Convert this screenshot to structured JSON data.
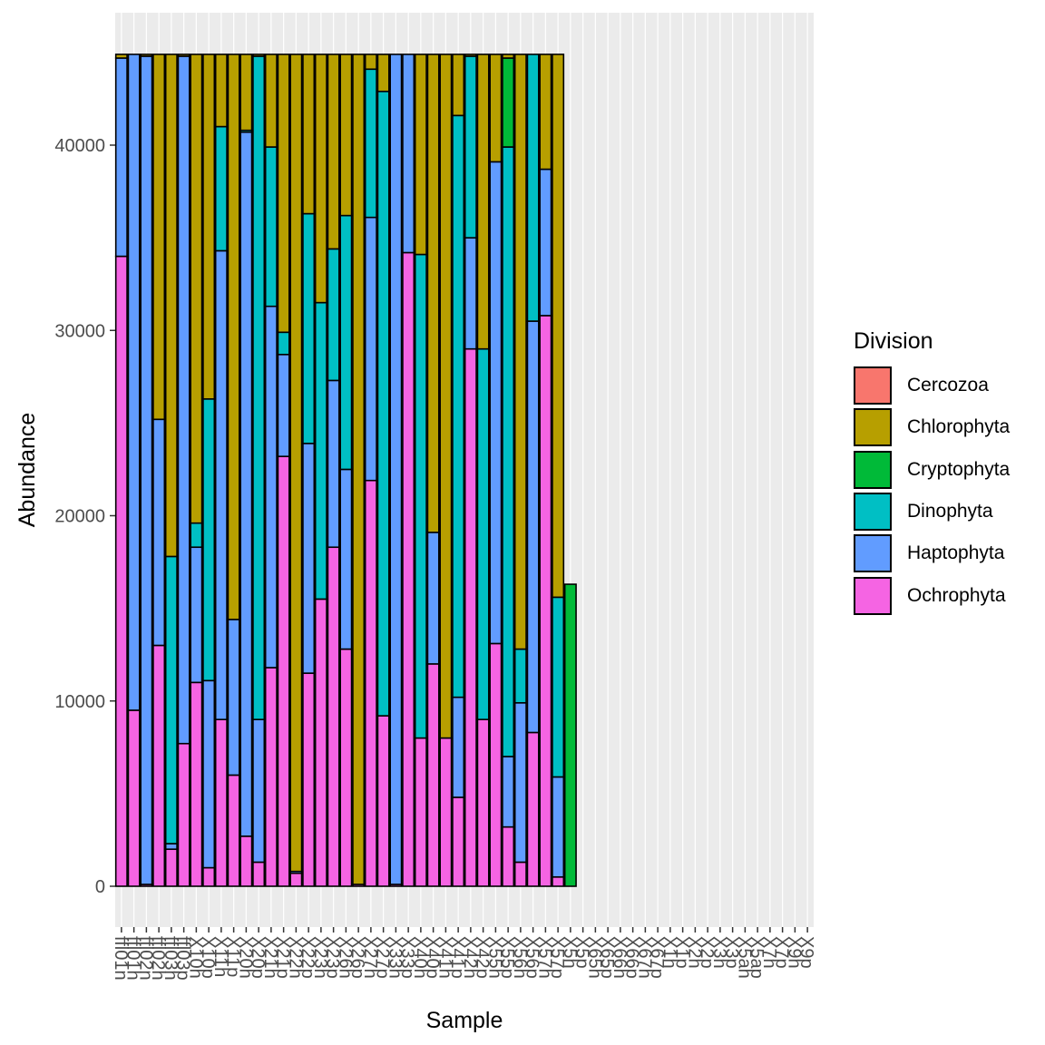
{
  "chart_data": {
    "type": "bar",
    "stacked": true,
    "xlabel": "Sample",
    "ylabel": "Abundance",
    "ylim": [
      0,
      47000
    ],
    "yticks": [
      "0",
      "10000",
      "20000",
      "30000",
      "40000"
    ],
    "grid": true,
    "legend_position": "right",
    "legend_title": "Division",
    "legend": [
      {
        "name": "Cercozoa",
        "color": "#F8766D"
      },
      {
        "name": "Chlorophyta",
        "color": "#B79F00"
      },
      {
        "name": "Cryptophyta",
        "color": "#00BA38"
      },
      {
        "name": "Dinophyta",
        "color": "#00BFC4"
      },
      {
        "name": "Haptophyta",
        "color": "#619CFF"
      },
      {
        "name": "Ochrophyta",
        "color": "#F564E3"
      }
    ],
    "categories": [
      "ffl01n",
      "ffl01h",
      "ffl02n",
      "ffl02h",
      "ffl03n",
      "ffl03p",
      "X10n",
      "X10p",
      "X11n",
      "X11p",
      "X20n",
      "X20p",
      "X21n",
      "X21p",
      "X22n",
      "X22p",
      "X23n",
      "X23p",
      "X26n",
      "X26p",
      "X27n",
      "X27p",
      "X33n",
      "X33p",
      "X40n",
      "X40p",
      "X41n",
      "X41p",
      "X42n",
      "X42p",
      "X55n",
      "X55p",
      "X56n",
      "X56p",
      "X57n",
      "X57p",
      "X5n",
      "X5p",
      "X65n",
      "X65p",
      "X66n",
      "X66p",
      "X67n",
      "X67p",
      "X1n",
      "X1p",
      "X2n",
      "X2p",
      "X3n",
      "X3p",
      "X5an",
      "X5ap",
      "X7n",
      "X7p",
      "X9n",
      "X9p"
    ],
    "stacks": [
      {
        "Ochrophyta": 34000,
        "Haptophyta": 10700,
        "Dinophyta": 0,
        "Cryptophyta": 0,
        "Chlorophyta": 200
      },
      {
        "Ochrophyta": 9500,
        "Haptophyta": 35400,
        "Dinophyta": 0,
        "Cryptophyta": 0,
        "Chlorophyta": 0
      },
      {
        "Ochrophyta": 100,
        "Haptophyta": 44700,
        "Dinophyta": 0,
        "Cryptophyta": 0,
        "Chlorophyta": 100
      },
      {
        "Ochrophyta": 13000,
        "Haptophyta": 12200,
        "Dinophyta": 0,
        "Cryptophyta": 0,
        "Chlorophyta": 19700
      },
      {
        "Ochrophyta": 2000,
        "Haptophyta": 300,
        "Dinophyta": 15500,
        "Cryptophyta": 0,
        "Chlorophyta": 27100
      },
      {
        "Ochrophyta": 7700,
        "Haptophyta": 37100,
        "Dinophyta": 0,
        "Cryptophyta": 0,
        "Chlorophyta": 100
      },
      {
        "Ochrophyta": 11000,
        "Haptophyta": 7300,
        "Dinophyta": 1300,
        "Cryptophyta": 0,
        "Chlorophyta": 25300
      },
      {
        "Ochrophyta": 1000,
        "Haptophyta": 10100,
        "Dinophyta": 15200,
        "Cryptophyta": 0,
        "Chlorophyta": 18600
      },
      {
        "Ochrophyta": 9000,
        "Haptophyta": 25300,
        "Dinophyta": 6700,
        "Cryptophyta": 0,
        "Chlorophyta": 3900
      },
      {
        "Ochrophyta": 6000,
        "Haptophyta": 8400,
        "Dinophyta": 0,
        "Cryptophyta": 0,
        "Chlorophyta": 30500
      },
      {
        "Ochrophyta": 2700,
        "Haptophyta": 38000,
        "Dinophyta": 100,
        "Cryptophyta": 0,
        "Chlorophyta": 4100
      },
      {
        "Ochrophyta": 1300,
        "Haptophyta": 7700,
        "Dinophyta": 35800,
        "Cryptophyta": 0,
        "Chlorophyta": 100
      },
      {
        "Ochrophyta": 11800,
        "Haptophyta": 19500,
        "Dinophyta": 8600,
        "Cryptophyta": 0,
        "Chlorophyta": 5000
      },
      {
        "Ochrophyta": 23200,
        "Haptophyta": 5500,
        "Dinophyta": 1200,
        "Cryptophyta": 0,
        "Chlorophyta": 15000
      },
      {
        "Ochrophyta": 700,
        "Haptophyta": 100,
        "Dinophyta": 0,
        "Cryptophyta": 0,
        "Chlorophyta": 44100
      },
      {
        "Ochrophyta": 11500,
        "Haptophyta": 12400,
        "Dinophyta": 12400,
        "Cryptophyta": 0,
        "Chlorophyta": 8600
      },
      {
        "Ochrophyta": 15500,
        "Haptophyta": 0,
        "Dinophyta": 16000,
        "Cryptophyta": 0,
        "Chlorophyta": 13400
      },
      {
        "Ochrophyta": 18300,
        "Haptophyta": 9000,
        "Dinophyta": 7100,
        "Cryptophyta": 0,
        "Chlorophyta": 10500
      },
      {
        "Ochrophyta": 12800,
        "Haptophyta": 9700,
        "Dinophyta": 13700,
        "Cryptophyta": 0,
        "Chlorophyta": 8700
      },
      {
        "Ochrophyta": 100,
        "Haptophyta": 0,
        "Dinophyta": 0,
        "Cryptophyta": 0,
        "Chlorophyta": 44800
      },
      {
        "Ochrophyta": 21900,
        "Haptophyta": 14200,
        "Dinophyta": 8000,
        "Cryptophyta": 0,
        "Chlorophyta": 800
      },
      {
        "Ochrophyta": 9200,
        "Haptophyta": 0,
        "Dinophyta": 33700,
        "Cryptophyta": 0,
        "Chlorophyta": 2000
      },
      {
        "Ochrophyta": 100,
        "Haptophyta": 44800,
        "Dinophyta": 0,
        "Cryptophyta": 0,
        "Chlorophyta": 0
      },
      {
        "Ochrophyta": 34200,
        "Haptophyta": 10700,
        "Dinophyta": 0,
        "Cryptophyta": 0,
        "Chlorophyta": 0
      },
      {
        "Ochrophyta": 8000,
        "Haptophyta": 0,
        "Dinophyta": 26100,
        "Cryptophyta": 0,
        "Chlorophyta": 10800
      },
      {
        "Ochrophyta": 12000,
        "Haptophyta": 7100,
        "Dinophyta": 0,
        "Cryptophyta": 0,
        "Chlorophyta": 25800
      },
      {
        "Ochrophyta": 8000,
        "Haptophyta": 0,
        "Dinophyta": 0,
        "Cryptophyta": 0,
        "Chlorophyta": 36900
      },
      {
        "Ochrophyta": 4800,
        "Haptophyta": 5400,
        "Dinophyta": 31400,
        "Cryptophyta": 0,
        "Chlorophyta": 3300
      },
      {
        "Ochrophyta": 29000,
        "Haptophyta": 6000,
        "Dinophyta": 9800,
        "Cryptophyta": 0,
        "Chlorophyta": 100
      },
      {
        "Ochrophyta": 9000,
        "Haptophyta": 0,
        "Dinophyta": 20000,
        "Cryptophyta": 0,
        "Chlorophyta": 15900
      },
      {
        "Ochrophyta": 13100,
        "Haptophyta": 26000,
        "Dinophyta": 0,
        "Cryptophyta": 0,
        "Chlorophyta": 5800
      },
      {
        "Ochrophyta": 3200,
        "Haptophyta": 3800,
        "Dinophyta": 32900,
        "Cryptophyta": 4800,
        "Chlorophyta": 200
      },
      {
        "Ochrophyta": 1300,
        "Haptophyta": 8600,
        "Dinophyta": 2900,
        "Cryptophyta": 0,
        "Chlorophyta": 32100
      },
      {
        "Ochrophyta": 8300,
        "Haptophyta": 22200,
        "Dinophyta": 14400,
        "Cryptophyta": 0,
        "Chlorophyta": 0
      },
      {
        "Ochrophyta": 30800,
        "Haptophyta": 7900,
        "Dinophyta": 0,
        "Cryptophyta": 0,
        "Chlorophyta": 6200
      },
      {
        "Ochrophyta": 500,
        "Haptophyta": 5400,
        "Dinophyta": 9700,
        "Cryptophyta": 0,
        "Chlorophyta": 29300
      },
      {
        "Ochrophyta": 0,
        "Haptophyta": 0,
        "Dinophyta": 0,
        "Cryptophyta": 16300,
        "Chlorophyta": 0
      },
      {
        "Ochrophyta": 0,
        "Haptophyta": 0,
        "Dinophyta": 0,
        "Cryptophyta": 0,
        "Chlorophyta": 0
      },
      {
        "Ochrophyta": 0,
        "Haptophyta": 0,
        "Dinophyta": 0,
        "Cryptophyta": 0,
        "Chlorophyta": 0
      },
      {
        "Ochrophyta": 0,
        "Haptophyta": 0,
        "Dinophyta": 0,
        "Cryptophyta": 0,
        "Chlorophyta": 0
      },
      {
        "Ochrophyta": 0,
        "Haptophyta": 0,
        "Dinophyta": 0,
        "Cryptophyta": 0,
        "Chlorophyta": 0
      },
      {
        "Ochrophyta": 0,
        "Haptophyta": 0,
        "Dinophyta": 0,
        "Cryptophyta": 0,
        "Chlorophyta": 0
      },
      {
        "Ochrophyta": 0,
        "Haptophyta": 0,
        "Dinophyta": 0,
        "Cryptophyta": 0,
        "Chlorophyta": 0
      },
      {
        "Ochrophyta": 0,
        "Haptophyta": 0,
        "Dinophyta": 0,
        "Cryptophyta": 0,
        "Chlorophyta": 0
      },
      {
        "Ochrophyta": 0,
        "Haptophyta": 0,
        "Dinophyta": 0,
        "Cryptophyta": 0,
        "Chlorophyta": 0
      },
      {
        "Ochrophyta": 0,
        "Haptophyta": 0,
        "Dinophyta": 0,
        "Cryptophyta": 0,
        "Chlorophyta": 0
      },
      {
        "Ochrophyta": 0,
        "Haptophyta": 0,
        "Dinophyta": 0,
        "Cryptophyta": 0,
        "Chlorophyta": 0
      },
      {
        "Ochrophyta": 0,
        "Haptophyta": 0,
        "Dinophyta": 0,
        "Cryptophyta": 0,
        "Chlorophyta": 0
      },
      {
        "Ochrophyta": 0,
        "Haptophyta": 0,
        "Dinophyta": 0,
        "Cryptophyta": 0,
        "Chlorophyta": 0
      },
      {
        "Ochrophyta": 0,
        "Haptophyta": 0,
        "Dinophyta": 0,
        "Cryptophyta": 0,
        "Chlorophyta": 0
      },
      {
        "Ochrophyta": 0,
        "Haptophyta": 0,
        "Dinophyta": 0,
        "Cryptophyta": 0,
        "Chlorophyta": 0
      },
      {
        "Ochrophyta": 0,
        "Haptophyta": 0,
        "Dinophyta": 0,
        "Cryptophyta": 0,
        "Chlorophyta": 0
      },
      {
        "Ochrophyta": 0,
        "Haptophyta": 0,
        "Dinophyta": 0,
        "Cryptophyta": 0,
        "Chlorophyta": 0
      },
      {
        "Ochrophyta": 0,
        "Haptophyta": 0,
        "Dinophyta": 0,
        "Cryptophyta": 0,
        "Chlorophyta": 0
      },
      {
        "Ochrophyta": 0,
        "Haptophyta": 0,
        "Dinophyta": 0,
        "Cryptophyta": 0,
        "Chlorophyta": 0
      },
      {
        "Ochrophyta": 0,
        "Haptophyta": 0,
        "Dinophyta": 0,
        "Cryptophyta": 0,
        "Chlorophyta": 0
      }
    ]
  }
}
